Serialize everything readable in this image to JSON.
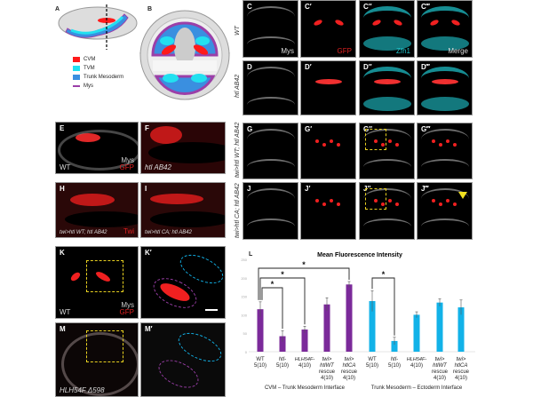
{
  "panels": {
    "A": "A",
    "B": "B",
    "L": "L",
    "C": [
      "C",
      "C′",
      "C″",
      "C‴"
    ],
    "D": [
      "D",
      "D′",
      "D″",
      "D‴"
    ],
    "G": [
      "G",
      "G′",
      "G″",
      "G‴"
    ],
    "J": [
      "J",
      "J′",
      "J″",
      "J‴"
    ],
    "E": "E",
    "F": "F",
    "H": "H",
    "I": "I",
    "K": "K",
    "K2": "K′",
    "M": "M",
    "M2": "M′"
  },
  "legend": [
    {
      "label": "CVM",
      "color": "#ff1a1a"
    },
    {
      "label": "TVM",
      "color": "#22e0f0"
    },
    {
      "label": "Trunk Mesoderm",
      "color": "#3a8fe0"
    },
    {
      "label": "Mys",
      "color": "#9b3fa8"
    }
  ],
  "row_labels": {
    "wt": "WT",
    "htl": "htl AB42",
    "g": "twi>htl WT; htl AB42",
    "j": "twi>htl CA; htl AB42"
  },
  "channel_labels": {
    "mys": "Mys",
    "gfp": "GFP",
    "zfh1": "Zfh1",
    "merge": "Merge",
    "twi": "Twi"
  },
  "panel_corner_labels": {
    "E": "WT",
    "F": "htl AB42",
    "H": "twi>htl WT; htl AB42",
    "I": "twi>htl CA; htl AB42",
    "K": "WT",
    "M": "HLH54F Δ598"
  },
  "colors": {
    "purple": "#7b2a9a",
    "blue": "#12b2e8",
    "red": "#ff2020",
    "cyan": "#20c8d0",
    "yellow": "#e8d020"
  },
  "chart_data": {
    "type": "bar",
    "title": "Mean Fluorescence Intensity",
    "ylim": [
      0,
      250
    ],
    "yticks": [
      0,
      50,
      100,
      150,
      200,
      250
    ],
    "grid": false,
    "groups": [
      {
        "name": "CVM – Trunk Mesoderm Interface",
        "color": "#7b2a9a",
        "categories": [
          [
            "WT",
            "5(10)"
          ],
          [
            "htl-",
            "5(10)"
          ],
          [
            "HLH54F-",
            "4(10)"
          ],
          [
            "twi>",
            "htlWT",
            "rescue",
            "4(10)"
          ],
          [
            "twi>",
            "htlCA",
            "rescue",
            "4(10)"
          ]
        ],
        "values": [
          115,
          42,
          60,
          128,
          182
        ],
        "errors": [
          20,
          15,
          9,
          18,
          8
        ]
      },
      {
        "name": "Trunk Mesoderm – Ectoderm Interface",
        "color": "#12b2e8",
        "categories": [
          [
            "WT",
            "5(10)"
          ],
          [
            "htl-",
            "5(10)"
          ],
          [
            "HLH54F-",
            "4(10)"
          ],
          [
            "twi>",
            "htlWT",
            "rescue",
            "4(10)"
          ],
          [
            "twi>",
            "htlCA",
            "rescue",
            "4(10)"
          ]
        ],
        "values": [
          137,
          29,
          100,
          133,
          120
        ],
        "errors": [
          28,
          10,
          8,
          10,
          20
        ]
      }
    ],
    "significance": [
      {
        "group": 0,
        "from": 0,
        "to": 1,
        "label": "*"
      },
      {
        "group": 0,
        "from": 0,
        "to": 2,
        "label": "*"
      },
      {
        "group": 0,
        "from": 0,
        "to": 4,
        "label": "*"
      },
      {
        "group": 1,
        "from": 0,
        "to": 1,
        "label": "*"
      }
    ]
  }
}
